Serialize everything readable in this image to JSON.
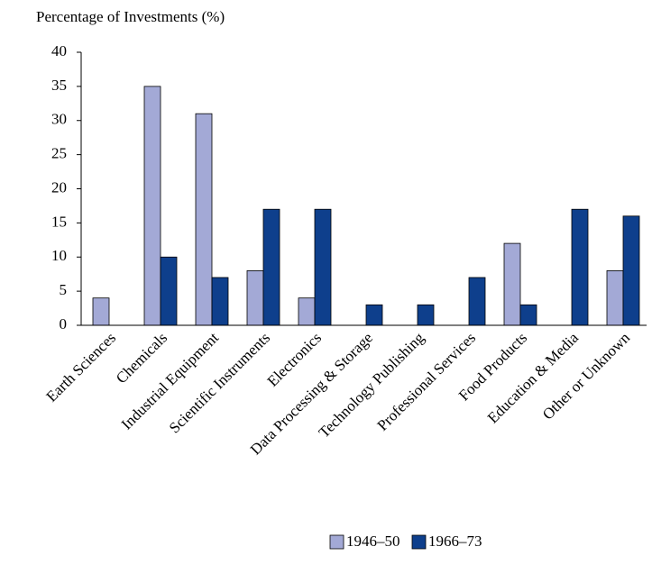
{
  "chart_data": {
    "type": "bar",
    "title": "Percentage of Investments (%)",
    "categories": [
      "Earth Sciences",
      "Chemicals",
      "Industrial Equipment",
      "Scientific Instruments",
      "Electronics",
      "Data Processing & Storage",
      "Technology Publishing",
      "Professional Services",
      "Food Products",
      "Education & Media",
      "Other or Unknown"
    ],
    "series": [
      {
        "name": "1946–50",
        "color": "#a3a9d6",
        "values": [
          4,
          35,
          31,
          8,
          4,
          0,
          0,
          0,
          12,
          0,
          8
        ]
      },
      {
        "name": "1966–73",
        "color": "#0e3f8c",
        "values": [
          0,
          10,
          7,
          17,
          17,
          3,
          3,
          7,
          3,
          17,
          16
        ]
      }
    ],
    "ylim": [
      0,
      40
    ],
    "yticks": [
      0,
      5,
      10,
      15,
      20,
      25,
      30,
      35,
      40
    ],
    "grid": false,
    "legend": "bottom"
  }
}
